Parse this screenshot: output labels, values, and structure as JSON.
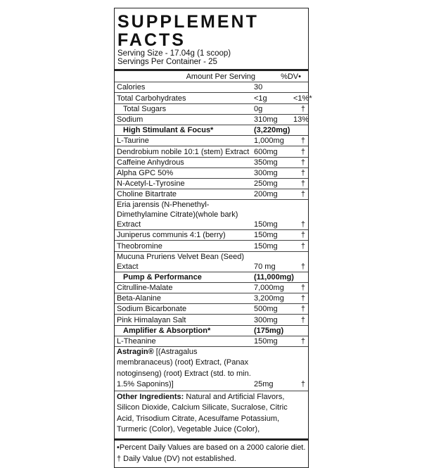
{
  "title": "SUPPLEMENT FACTS",
  "serving_size": "Serving Size - 17.04g (1 scoop)",
  "servings_per_container": "Servings Per Container - 25",
  "header": {
    "amount": "Amount Per Serving",
    "dv": "%DV•"
  },
  "rows": [
    {
      "name": "Calories",
      "amount": "30",
      "dv": ""
    },
    {
      "name": "Total Carbohydrates",
      "amount": "<1g",
      "dv": "<1%*"
    },
    {
      "name": "Total Sugars",
      "amount": "0g",
      "dv": "†"
    },
    {
      "name": "Sodium",
      "amount": "310mg",
      "dv": "13%"
    },
    {
      "name": "High Stimulant & Focus*",
      "amount": "(3,220mg)",
      "dv": ""
    },
    {
      "name": "L-Taurine",
      "amount": "1,000mg",
      "dv": "†"
    },
    {
      "name": "Dendrobium nobile 10:1 (stem) Extract",
      "amount": "600mg",
      "dv": "†"
    },
    {
      "name": "Caffeine Anhydrous",
      "amount": "350mg",
      "dv": "†"
    },
    {
      "name": "Alpha GPC 50%",
      "amount": "300mg",
      "dv": "†"
    },
    {
      "name": "N-Acetyl-L-Tyrosine",
      "amount": "250mg",
      "dv": "†"
    },
    {
      "name": "Choline Bitartrate",
      "amount": "200mg",
      "dv": "†"
    },
    {
      "name": "Eria jarensis (N-Phenethyl-Dimethylamine Citrate)(whole bark) Extract",
      "amount": "150mg",
      "dv": "†"
    },
    {
      "name": "Juniperus communis 4:1 (berry)",
      "amount": "150mg",
      "dv": "†"
    },
    {
      "name": "Theobromine",
      "amount": "150mg",
      "dv": "†"
    },
    {
      "name": "Mucuna Pruriens Velvet Bean (Seed) Extact",
      "amount": "70 mg",
      "dv": "†"
    },
    {
      "name": "Pump & Performance",
      "amount": "(11,000mg)",
      "dv": ""
    },
    {
      "name": "Citrulline-Malate",
      "amount": "7,000mg",
      "dv": "†"
    },
    {
      "name": "Beta-Alanine",
      "amount": "3,200mg",
      "dv": "†"
    },
    {
      "name": "Sodium Bicarbonate",
      "amount": "500mg",
      "dv": "†"
    },
    {
      "name": "Pink Himalayan Salt",
      "amount": "300mg",
      "dv": "†"
    },
    {
      "name": "Amplifier & Absorption*",
      "amount": "(175mg)",
      "dv": ""
    },
    {
      "name": "L-Theanine",
      "amount": "150mg",
      "dv": "†"
    }
  ],
  "astragin": {
    "name": "Astragin®",
    "text": " [(Astragalus membranaceus) (root) Extract, (Panax notoginseng) (root) Extract (std. to min. 1.5% Saponins)]",
    "amount": "25mg",
    "dv": "†"
  },
  "other": {
    "label": "Other Ingredients:",
    "text": " Natural and Artificial Flavors, Silicon Dioxide, Calcium Silicate, Sucralose, Citric Acid, Trisodium Citrate, Acesulfame Potassium, Turmeric (Color), Vegetable Juice (Color),"
  },
  "footnotes": [
    "•Percent Daily Values are based on a 2000 calorie diet.",
    "† Daily Value (DV) not established."
  ]
}
